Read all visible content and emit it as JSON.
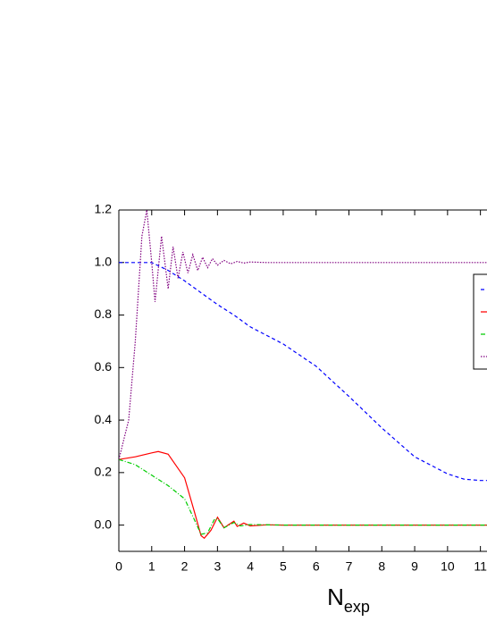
{
  "chart_data": {
    "type": "line",
    "x_label": "N",
    "x_label_sub": "exp",
    "xlim": [
      0,
      11.2
    ],
    "ylim": [
      -0.1,
      1.2
    ],
    "xticks": [
      0,
      1,
      2,
      3,
      4,
      5,
      6,
      7,
      8,
      9,
      10,
      11
    ],
    "yticks": [
      {
        "value": 0,
        "label": "0.0"
      },
      0.2,
      0.4,
      0.6,
      0.8,
      {
        "value": 1,
        "label": "1.0"
      },
      1.2
    ],
    "series": [
      {
        "color": "#0000ff",
        "dash": "4,3",
        "x": [
          0,
          0.5,
          1,
          1.5,
          2,
          2.5,
          3,
          3.5,
          4,
          5,
          6,
          7,
          8,
          9,
          10,
          10.5,
          11,
          11.2
        ],
        "values": [
          1.0,
          1.0,
          1.0,
          0.97,
          0.93,
          0.885,
          0.84,
          0.8,
          0.755,
          0.69,
          0.605,
          0.49,
          0.37,
          0.26,
          0.195,
          0.175,
          0.17,
          0.17
        ]
      },
      {
        "color": "#ff0000",
        "dash": "none",
        "x": [
          0,
          0.5,
          1,
          1.2,
          1.5,
          2,
          2.3,
          2.5,
          2.6,
          2.8,
          3.0,
          3.2,
          3.5,
          3.6,
          3.8,
          4,
          4.5,
          5,
          11.2
        ],
        "values": [
          0.25,
          0.26,
          0.275,
          0.28,
          0.27,
          0.18,
          0.05,
          -0.04,
          -0.05,
          -0.02,
          0.03,
          -0.01,
          0.015,
          -0.005,
          0.008,
          -0.003,
          0.001,
          0,
          0
        ]
      },
      {
        "color": "#00cc00",
        "dash": "5,2,1,2",
        "x": [
          0,
          0.5,
          1,
          1.5,
          2,
          2.3,
          2.5,
          2.7,
          2.9,
          3.0,
          3.2,
          3.5,
          3.7,
          4,
          5,
          11.2
        ],
        "values": [
          0.25,
          0.23,
          0.19,
          0.15,
          0.1,
          0.02,
          -0.035,
          -0.03,
          0.02,
          0.025,
          -0.01,
          0.01,
          -0.003,
          0.002,
          0,
          0
        ]
      },
      {
        "color": "#800080",
        "dash": "1.5,1.5",
        "x": [
          0,
          0.3,
          0.5,
          0.7,
          0.85,
          1.0,
          1.1,
          1.3,
          1.5,
          1.65,
          1.8,
          1.95,
          2.1,
          2.25,
          2.4,
          2.55,
          2.7,
          2.85,
          3.0,
          3.2,
          3.4,
          3.6,
          3.8,
          4.0,
          4.5,
          11.2
        ],
        "values": [
          0.25,
          0.4,
          0.7,
          1.1,
          1.2,
          1.0,
          0.85,
          1.1,
          0.9,
          1.06,
          0.94,
          1.04,
          0.96,
          1.03,
          0.97,
          1.02,
          0.98,
          1.015,
          0.99,
          1.008,
          0.995,
          1.004,
          0.998,
          1.002,
          1.0,
          1.0
        ]
      }
    ]
  }
}
